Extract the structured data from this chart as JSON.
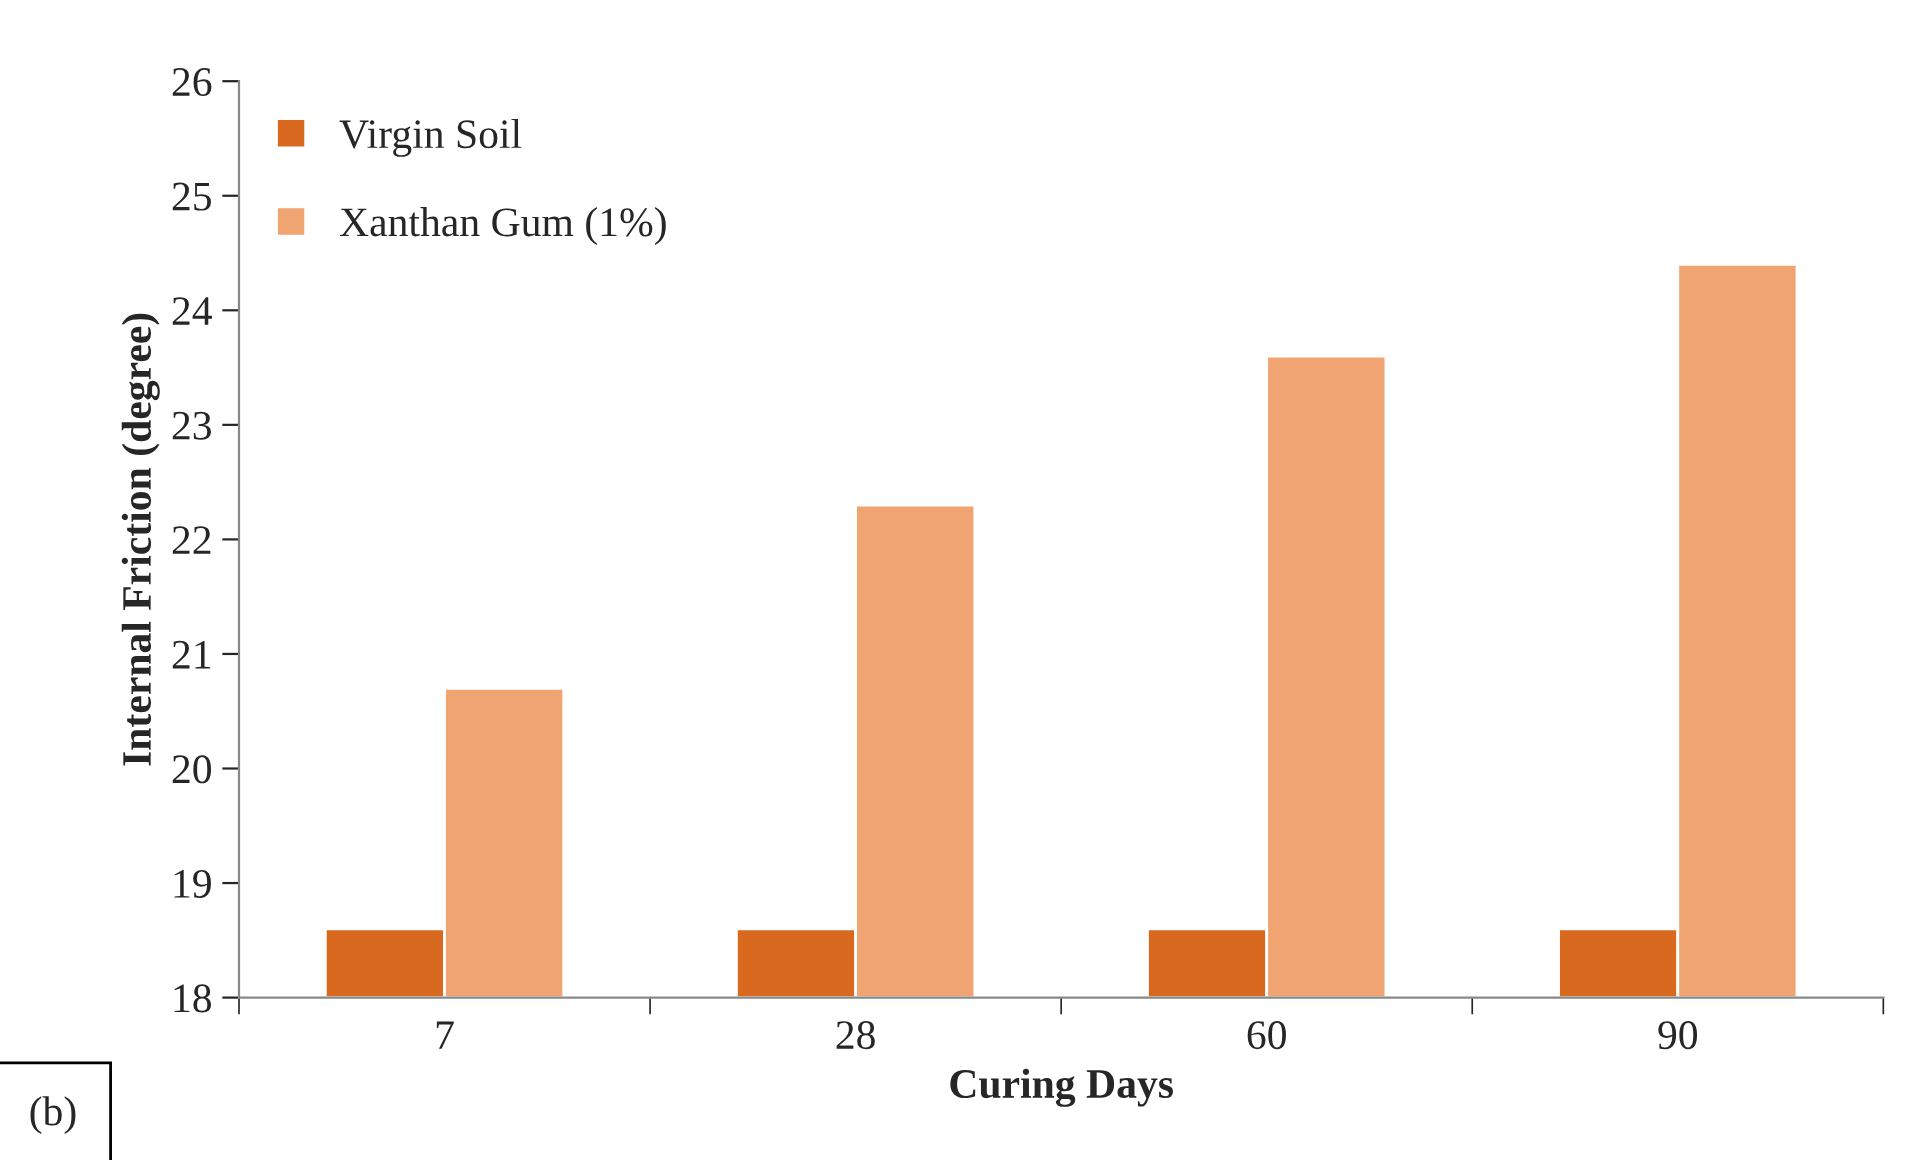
{
  "chart_data": {
    "type": "bar",
    "xlabel": "Curing Days",
    "ylabel": "Internal Friction (degree)",
    "categories": [
      "7",
      "28",
      "60",
      "90"
    ],
    "series": [
      {
        "name": "Virgin Soil",
        "color": "#d9691e",
        "values": [
          18.6,
          18.6,
          18.6,
          18.6
        ]
      },
      {
        "name": "Xanthan Gum (1%)",
        "color": "#f0a471",
        "values": [
          20.7,
          22.3,
          23.6,
          24.4
        ]
      }
    ],
    "ylim": [
      18,
      26
    ],
    "yticks": [
      18,
      19,
      20,
      21,
      22,
      23,
      24,
      25,
      26
    ],
    "grid": false,
    "legend": "top left",
    "annotations": [
      "(b)"
    ]
  }
}
